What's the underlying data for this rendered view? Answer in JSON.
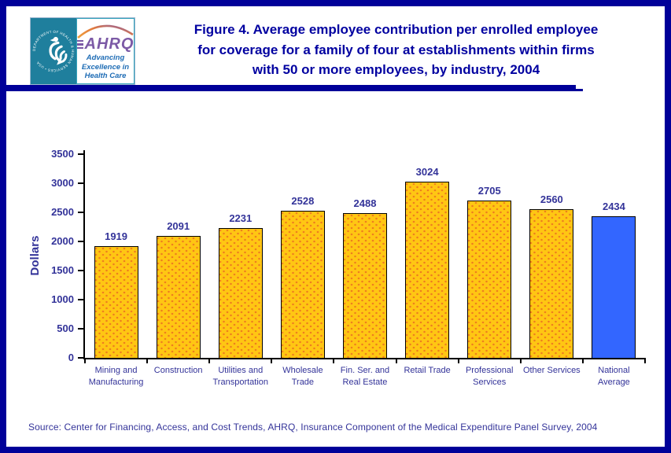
{
  "header": {
    "logo": {
      "seal_text": "DEPARTMENT OF HEALTH & HUMAN SERVICES • USA",
      "ahrq": "AHRQ",
      "tagline": "Advancing\nExcellence in\nHealth Care"
    },
    "title": "Figure 4. Average employee contribution per enrolled employee\nfor coverage for a family of four at establishments within firms\nwith 50 or more employees, by industry, 2004"
  },
  "chart_data": {
    "type": "bar",
    "title": "Figure 4. Average employee contribution per enrolled employee for coverage for a family of four at establishments within firms with 50 or more employees, by industry, 2004",
    "categories": [
      "Mining and\nManufacturing",
      "Construction",
      "Utilities and\nTransportation",
      "Wholesale\nTrade",
      "Fin. Ser. and\nReal Estate",
      "Retail Trade",
      "Professional\nServices",
      "Other Services",
      "National\nAverage"
    ],
    "values": [
      1919,
      2091,
      2231,
      2528,
      2488,
      3024,
      2705,
      2560,
      2434
    ],
    "xlabel": "",
    "ylabel": "Dollars",
    "ylim": [
      0,
      3500
    ],
    "yticks": [
      0,
      500,
      1000,
      1500,
      2000,
      2500,
      3000,
      3500
    ],
    "grid": false,
    "legend": null,
    "bar_color": "#FFC613",
    "bar_dot_color": "#ED7B20",
    "highlight_index": 8,
    "highlight_color": "#3366FF"
  },
  "source": "Source: Center for Financing, Access, and Cost Trends, AHRQ, Insurance Component of the Medical Expenditure Panel Survey, 2004"
}
